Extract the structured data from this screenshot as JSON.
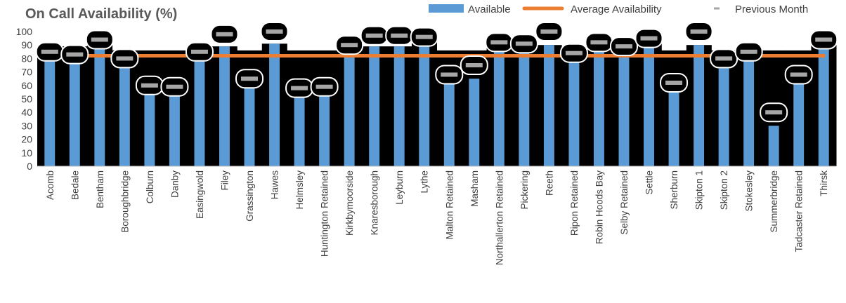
{
  "chart_data": {
    "type": "bar",
    "title": "On Call Availability (%)",
    "xlabel": "",
    "ylabel": "",
    "ylim": [
      0,
      100
    ],
    "yticks": [
      0,
      10,
      20,
      30,
      40,
      50,
      60,
      70,
      80,
      90,
      100
    ],
    "legend_position": "top-right",
    "categories": [
      "Acomb",
      "Bedale",
      "Bentham",
      "Boroughbridge",
      "Colburn",
      "Danby",
      "Easingwold",
      "Filey",
      "Grassington",
      "Hawes",
      "Helmsley",
      "Huntington Retained",
      "Kirkbymoorside",
      "Knaresborough",
      "Leyburn",
      "Lythe",
      "Malton Retained",
      "Masham",
      "Northallerton Retained",
      "Pickering",
      "Reeth",
      "Ripon Retained",
      "Robin Hoods Bay",
      "Selby Retained",
      "Settle",
      "Sherburn",
      "Skipton 1",
      "Skipton 2",
      "Stokesley",
      "Summerbridge",
      "Tadcaster Retained",
      "Thirsk"
    ],
    "series": [
      {
        "name": "Available",
        "kind": "bar",
        "color": "#5b9bd5",
        "values": [
          84,
          89,
          91,
          80,
          62,
          58,
          84,
          89,
          65,
          91,
          62,
          57,
          93,
          89,
          89,
          95,
          66,
          65,
          94,
          93,
          90,
          82,
          89,
          88,
          91,
          55,
          90,
          80,
          84,
          30,
          66,
          92
        ]
      },
      {
        "name": "Average Availability",
        "kind": "line",
        "color": "#ed7d31",
        "values": [
          82,
          82,
          82,
          82,
          82,
          82,
          82,
          82,
          82,
          82,
          82,
          82,
          82,
          82,
          82,
          82,
          82,
          82,
          82,
          82,
          82,
          82,
          82,
          82,
          82,
          82,
          82,
          82,
          82,
          82,
          82,
          82
        ]
      },
      {
        "name": "Previous Month",
        "kind": "marker",
        "color": "#a6a6a6",
        "values": [
          85,
          83,
          94,
          80,
          60,
          59,
          85,
          98,
          65,
          100,
          58,
          59,
          90,
          97,
          97,
          96,
          68,
          75,
          92,
          91,
          100,
          84,
          92,
          89,
          95,
          62,
          100,
          80,
          85,
          40,
          68,
          94
        ]
      }
    ]
  }
}
